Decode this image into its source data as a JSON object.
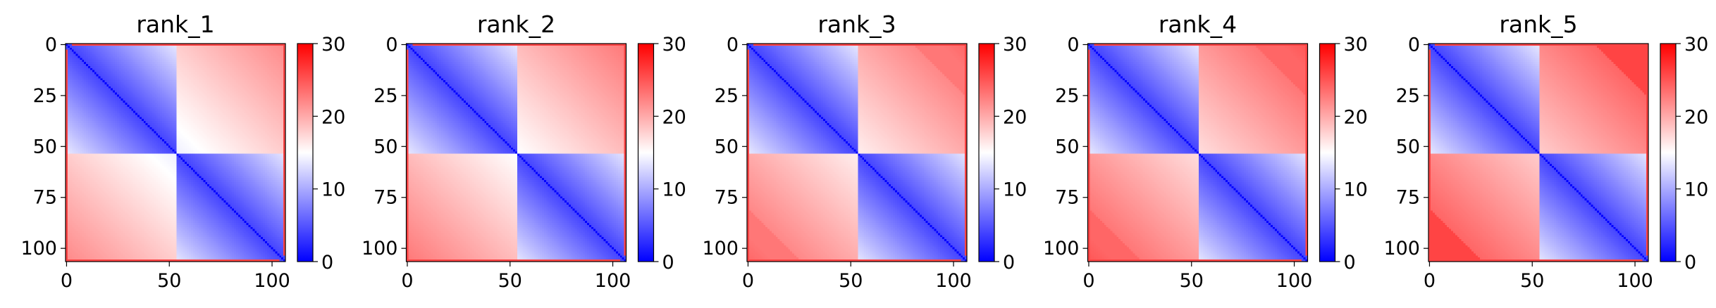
{
  "chart_data": [
    {
      "type": "heatmap",
      "title": "rank_1",
      "matrix_size": 107,
      "x_ticks": [
        0,
        50,
        100
      ],
      "y_ticks": [
        0,
        25,
        50,
        75,
        100
      ],
      "colorbar": {
        "min": 0,
        "max": 30,
        "ticks": [
          0,
          10,
          20,
          30
        ]
      },
      "colormap": [
        "#0000ff",
        "#ffffff",
        "#ff0000"
      ],
      "domains": [
        [
          0,
          54
        ],
        [
          54,
          106
        ]
      ],
      "intra_domain_value": 4,
      "inter_domain_value": 14,
      "corner_value": 18
    },
    {
      "type": "heatmap",
      "title": "rank_2",
      "matrix_size": 107,
      "x_ticks": [
        0,
        50,
        100
      ],
      "y_ticks": [
        0,
        25,
        50,
        75,
        100
      ],
      "colorbar": {
        "min": 0,
        "max": 30,
        "ticks": [
          0,
          10,
          20,
          30
        ]
      },
      "colormap": [
        "#0000ff",
        "#ffffff",
        "#ff0000"
      ],
      "domains": [
        [
          0,
          54
        ],
        [
          54,
          106
        ]
      ],
      "intra_domain_value": 4,
      "inter_domain_value": 15,
      "corner_value": 21
    },
    {
      "type": "heatmap",
      "title": "rank_3",
      "matrix_size": 107,
      "x_ticks": [
        0,
        50,
        100
      ],
      "y_ticks": [
        0,
        25,
        50,
        75,
        100
      ],
      "colorbar": {
        "min": 0,
        "max": 30,
        "ticks": [
          0,
          10,
          20,
          30
        ]
      },
      "colormap": [
        "#0000ff",
        "#ffffff",
        "#ff0000"
      ],
      "domains": [
        [
          0,
          54
        ],
        [
          54,
          106
        ]
      ],
      "intra_domain_value": 4,
      "inter_domain_value": 16,
      "corner_value": 23
    },
    {
      "type": "heatmap",
      "title": "rank_4",
      "matrix_size": 107,
      "x_ticks": [
        0,
        50,
        100
      ],
      "y_ticks": [
        0,
        25,
        50,
        75,
        100
      ],
      "colorbar": {
        "min": 0,
        "max": 30,
        "ticks": [
          0,
          10,
          20,
          30
        ]
      },
      "colormap": [
        "#0000ff",
        "#ffffff",
        "#ff0000"
      ],
      "domains": [
        [
          0,
          54
        ],
        [
          54,
          106
        ]
      ],
      "intra_domain_value": 4,
      "inter_domain_value": 17,
      "corner_value": 24
    },
    {
      "type": "heatmap",
      "title": "rank_5",
      "matrix_size": 107,
      "x_ticks": [
        0,
        50,
        100
      ],
      "y_ticks": [
        0,
        25,
        50,
        75,
        100
      ],
      "colorbar": {
        "min": 0,
        "max": 30,
        "ticks": [
          0,
          10,
          20,
          30
        ]
      },
      "colormap": [
        "#0000ff",
        "#ffffff",
        "#ff0000"
      ],
      "domains": [
        [
          0,
          54
        ],
        [
          54,
          106
        ]
      ],
      "intra_domain_value": 4,
      "inter_domain_value": 18,
      "corner_value": 26
    }
  ]
}
